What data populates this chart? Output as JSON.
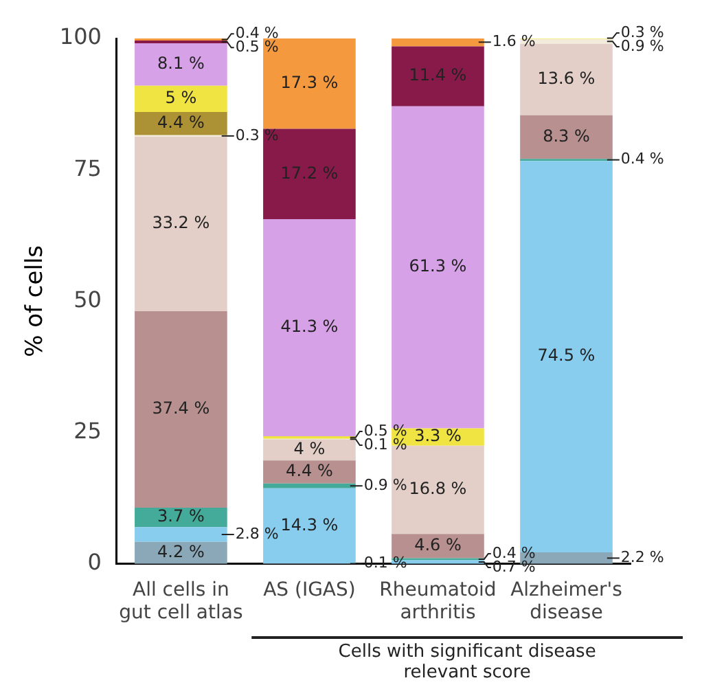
{
  "chart_data": {
    "type": "bar",
    "stacked": true,
    "ylabel": "% of cells",
    "categories": [
      "All cells in gut cell atlas",
      "AS (IGAS)",
      "Rheumatoid arthritis",
      "Alzheimer's disease"
    ],
    "ylim": [
      0,
      100
    ],
    "yticks": [
      0,
      25,
      50,
      75,
      100
    ],
    "grid": false,
    "legend": false,
    "annotations": [
      "Cells with significant disease relevant score"
    ],
    "series": [
      {
        "color": "#8aa8b8",
        "values": [
          4.2,
          0.1,
          null,
          2.2
        ],
        "value_labels": [
          "4.2 %",
          "0.1 %",
          null,
          "2.2 %"
        ]
      },
      {
        "color": "#88ccee",
        "values": [
          2.8,
          14.3,
          0.7,
          74.5
        ],
        "value_labels": [
          "2.8 %",
          "14.3 %",
          "0.7 %",
          "74.5 %"
        ]
      },
      {
        "color": "#44aa99",
        "values": [
          3.7,
          0.9,
          0.4,
          0.4
        ],
        "value_labels": [
          "3.7 %",
          "0.9 %",
          "0.4 %",
          "0.4 %"
        ]
      },
      {
        "color": "#b89090",
        "values": [
          37.4,
          4.4,
          4.6,
          8.3
        ],
        "value_labels": [
          "37.4 %",
          "4.4 %",
          "4.6 %",
          "8.3 %"
        ]
      },
      {
        "color": "#e3cfc8",
        "values": [
          33.2,
          4,
          16.8,
          13.6
        ],
        "value_labels": [
          "33.2 %",
          "4 %",
          "16.8 %",
          "13.6 %"
        ]
      },
      {
        "color": "#f3ecdc",
        "values": [
          0.3,
          0.1,
          null,
          0.9
        ],
        "value_labels": [
          "0.3 %",
          "0.1 %",
          null,
          "0.9 %"
        ]
      },
      {
        "color": "#ad9135",
        "values": [
          4.4,
          null,
          null,
          null
        ],
        "value_labels": [
          "4.4 %",
          null,
          null,
          null
        ]
      },
      {
        "color": "#f0e442",
        "values": [
          5,
          0.5,
          3.3,
          0.3
        ],
        "value_labels": [
          "5 %",
          "0.5 %",
          "3.3 %",
          "0.3 %"
        ]
      },
      {
        "color": "#d6a1e6",
        "values": [
          8.1,
          41.3,
          61.3,
          null
        ],
        "value_labels": [
          "8.1 %",
          "41.3 %",
          "61.3 %",
          null
        ]
      },
      {
        "color": "#881a4a",
        "values": [
          0.5,
          17.2,
          11.4,
          null
        ],
        "value_labels": [
          "0.5 %",
          "17.2 %",
          "11.4 %",
          null
        ]
      },
      {
        "color": "#f5993f",
        "values": [
          0.4,
          17.3,
          1.6,
          null
        ],
        "value_labels": [
          "0.4 %",
          "17.3 %",
          "1.6 %",
          null
        ]
      }
    ]
  }
}
